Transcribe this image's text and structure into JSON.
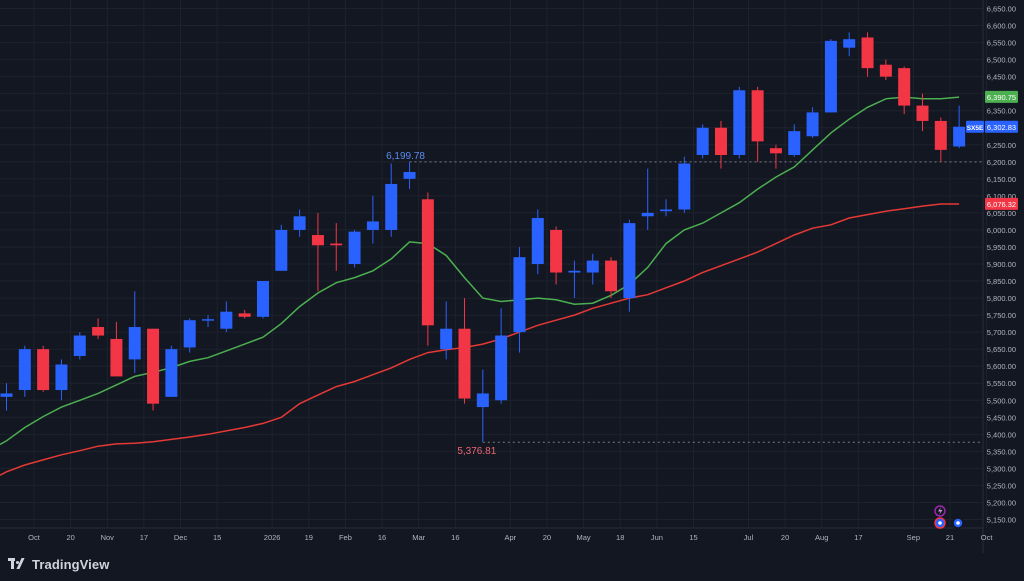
{
  "chart_data": {
    "type": "candlestick",
    "symbol": "SX5E",
    "interval": "weekly",
    "y_axis": {
      "min": 5125,
      "max": 6675,
      "tick_step": 50,
      "ticks": [
        "5,150.00",
        "5,200.00",
        "5,250.00",
        "5,300.00",
        "5,350.00",
        "5,400.00",
        "5,450.00",
        "5,500.00",
        "5,550.00",
        "5,600.00",
        "5,650.00",
        "5,700.00",
        "5,750.00",
        "5,800.00",
        "5,850.00",
        "5,900.00",
        "5,950.00",
        "6,000.00",
        "6,050.00",
        "6,100.00",
        "6,150.00",
        "6,200.00",
        "6,250.00",
        "6,300.00",
        "6,350.00",
        "6,400.00",
        "6,450.00",
        "6,500.00",
        "6,550.00",
        "6,600.00",
        "6,650.00"
      ]
    },
    "x_axis": {
      "labels": [
        {
          "text": "Oct",
          "bar": 1.5
        },
        {
          "text": "20",
          "bar": 3.5
        },
        {
          "text": "Nov",
          "bar": 5.5
        },
        {
          "text": "17",
          "bar": 7.5
        },
        {
          "text": "Dec",
          "bar": 9.5
        },
        {
          "text": "15",
          "bar": 11.5
        },
        {
          "text": "2026",
          "bar": 14.5
        },
        {
          "text": "19",
          "bar": 16.5
        },
        {
          "text": "Feb",
          "bar": 18.5
        },
        {
          "text": "16",
          "bar": 20.5
        },
        {
          "text": "Mar",
          "bar": 22.5
        },
        {
          "text": "16",
          "bar": 24.5
        },
        {
          "text": "Apr",
          "bar": 27.5
        },
        {
          "text": "20",
          "bar": 29.5
        },
        {
          "text": "May",
          "bar": 31.5
        },
        {
          "text": "18",
          "bar": 33.5
        },
        {
          "text": "Jun",
          "bar": 35.5
        },
        {
          "text": "15",
          "bar": 37.5
        },
        {
          "text": "Jul",
          "bar": 40.5
        },
        {
          "text": "20",
          "bar": 42.5
        },
        {
          "text": "Aug",
          "bar": 44.5
        },
        {
          "text": "17",
          "bar": 46.5
        },
        {
          "text": "Sep",
          "bar": 49.5
        },
        {
          "text": "21",
          "bar": 51.5
        },
        {
          "text": "Oct",
          "bar": 53.5
        }
      ]
    },
    "candles": [
      {
        "o": 5510,
        "h": 5550,
        "l": 5470,
        "c": 5520
      },
      {
        "o": 5530,
        "h": 5660,
        "l": 5510,
        "c": 5650
      },
      {
        "o": 5650,
        "h": 5660,
        "l": 5525,
        "c": 5530
      },
      {
        "o": 5530,
        "h": 5620,
        "l": 5500,
        "c": 5605
      },
      {
        "o": 5630,
        "h": 5700,
        "l": 5620,
        "c": 5690
      },
      {
        "o": 5715,
        "h": 5740,
        "l": 5680,
        "c": 5690
      },
      {
        "o": 5680,
        "h": 5730,
        "l": 5570,
        "c": 5570
      },
      {
        "o": 5620,
        "h": 5820,
        "l": 5580,
        "c": 5715
      },
      {
        "o": 5710,
        "h": 5710,
        "l": 5470,
        "c": 5490
      },
      {
        "o": 5510,
        "h": 5660,
        "l": 5510,
        "c": 5650
      },
      {
        "o": 5655,
        "h": 5740,
        "l": 5640,
        "c": 5735
      },
      {
        "o": 5735,
        "h": 5750,
        "l": 5715,
        "c": 5738
      },
      {
        "o": 5710,
        "h": 5790,
        "l": 5700,
        "c": 5760
      },
      {
        "o": 5755,
        "h": 5765,
        "l": 5740,
        "c": 5745
      },
      {
        "o": 5745,
        "h": 5850,
        "l": 5740,
        "c": 5850
      },
      {
        "o": 5880,
        "h": 6015,
        "l": 5880,
        "c": 6000
      },
      {
        "o": 6000,
        "h": 6060,
        "l": 5980,
        "c": 6040
      },
      {
        "o": 5985,
        "h": 6050,
        "l": 5820,
        "c": 5955
      },
      {
        "o": 5960,
        "h": 6020,
        "l": 5880,
        "c": 5955
      },
      {
        "o": 5900,
        "h": 6000,
        "l": 5890,
        "c": 5995
      },
      {
        "o": 6000,
        "h": 6100,
        "l": 5960,
        "c": 6025
      },
      {
        "o": 6000,
        "h": 6195,
        "l": 5980,
        "c": 6135
      },
      {
        "o": 6150,
        "h": 6200,
        "l": 6120,
        "c": 6170
      },
      {
        "o": 6090,
        "h": 6110,
        "l": 5660,
        "c": 5720
      },
      {
        "o": 5650,
        "h": 5790,
        "l": 5620,
        "c": 5710
      },
      {
        "o": 5710,
        "h": 5800,
        "l": 5490,
        "c": 5505
      },
      {
        "o": 5480,
        "h": 5590,
        "l": 5377,
        "c": 5520
      },
      {
        "o": 5500,
        "h": 5770,
        "l": 5490,
        "c": 5690
      },
      {
        "o": 5700,
        "h": 5950,
        "l": 5640,
        "c": 5920
      },
      {
        "o": 5900,
        "h": 6060,
        "l": 5870,
        "c": 6035
      },
      {
        "o": 6000,
        "h": 6010,
        "l": 5840,
        "c": 5875
      },
      {
        "o": 5875,
        "h": 5910,
        "l": 5800,
        "c": 5880
      },
      {
        "o": 5875,
        "h": 5930,
        "l": 5840,
        "c": 5910
      },
      {
        "o": 5910,
        "h": 5920,
        "l": 5800,
        "c": 5820
      },
      {
        "o": 5800,
        "h": 6030,
        "l": 5760,
        "c": 6020
      },
      {
        "o": 6040,
        "h": 6180,
        "l": 6000,
        "c": 6050
      },
      {
        "o": 6055,
        "h": 6090,
        "l": 6040,
        "c": 6060
      },
      {
        "o": 6060,
        "h": 6215,
        "l": 6050,
        "c": 6195
      },
      {
        "o": 6220,
        "h": 6310,
        "l": 6210,
        "c": 6300
      },
      {
        "o": 6300,
        "h": 6320,
        "l": 6180,
        "c": 6220
      },
      {
        "o": 6220,
        "h": 6420,
        "l": 6210,
        "c": 6410
      },
      {
        "o": 6410,
        "h": 6420,
        "l": 6200,
        "c": 6260
      },
      {
        "o": 6240,
        "h": 6250,
        "l": 6180,
        "c": 6225
      },
      {
        "o": 6220,
        "h": 6310,
        "l": 6215,
        "c": 6290
      },
      {
        "o": 6275,
        "h": 6360,
        "l": 6270,
        "c": 6345
      },
      {
        "o": 6345,
        "h": 6560,
        "l": 6345,
        "c": 6555
      },
      {
        "o": 6535,
        "h": 6580,
        "l": 6510,
        "c": 6560
      },
      {
        "o": 6565,
        "h": 6580,
        "l": 6450,
        "c": 6475
      },
      {
        "o": 6485,
        "h": 6500,
        "l": 6440,
        "c": 6450
      },
      {
        "o": 6475,
        "h": 6480,
        "l": 6340,
        "c": 6365
      },
      {
        "o": 6365,
        "h": 6400,
        "l": 6290,
        "c": 6320
      },
      {
        "o": 6320,
        "h": 6330,
        "l": 6200,
        "c": 6235
      },
      {
        "o": 6245,
        "h": 6365,
        "l": 6240,
        "c": 6303
      }
    ],
    "ma_green": [
      5381,
      5420,
      5452,
      5480,
      5500,
      5520,
      5545,
      5570,
      5582,
      5596,
      5614,
      5625,
      5645,
      5665,
      5685,
      5725,
      5775,
      5815,
      5845,
      5860,
      5880,
      5915,
      5965,
      5960,
      5925,
      5860,
      5800,
      5790,
      5795,
      5800,
      5795,
      5782,
      5785,
      5808,
      5840,
      5890,
      5960,
      6000,
      6020,
      6050,
      6080,
      6120,
      6155,
      6185,
      6235,
      6285,
      6325,
      6360,
      6385,
      6390,
      6385,
      6385,
      6390
    ],
    "ma_red": [
      5290,
      5310,
      5325,
      5340,
      5352,
      5365,
      5372,
      5374,
      5378,
      5385,
      5392,
      5400,
      5410,
      5420,
      5432,
      5450,
      5490,
      5515,
      5540,
      5555,
      5575,
      5595,
      5620,
      5640,
      5648,
      5655,
      5665,
      5680,
      5700,
      5720,
      5735,
      5750,
      5770,
      5785,
      5800,
      5810,
      5830,
      5850,
      5875,
      5895,
      5915,
      5935,
      5960,
      5985,
      6005,
      6015,
      6035,
      6045,
      6055,
      6062,
      6070,
      6076,
      6076
    ],
    "price_labels": {
      "last": {
        "text": "6,302.83",
        "value": 6302.83,
        "symbol": "SX5E",
        "color": "#2962ff"
      },
      "ma_green": {
        "text": "6,390.75",
        "value": 6390.75,
        "color": "#4caf50"
      },
      "ma_red": {
        "text": "6,076.32",
        "value": 6076.32,
        "color": "#f23645"
      }
    },
    "annotations": {
      "high": {
        "text": "6,199.78",
        "value": 6199.78,
        "bar": 22
      },
      "low": {
        "text": "5,376.81",
        "value": 5376.81,
        "bar": 26
      }
    },
    "colors": {
      "up": "#2962ff",
      "down": "#f23645",
      "background": "#131722",
      "grid": "#1e222d",
      "axis_text": "#b2b5be",
      "ma_green": "#4caf50",
      "ma_red": "#e53935"
    },
    "grid": true
  },
  "footer": {
    "brand": "TradingView"
  },
  "markers": {
    "icons": [
      "lightning-icon",
      "event-dot-icon",
      "event-dot-icon"
    ]
  }
}
